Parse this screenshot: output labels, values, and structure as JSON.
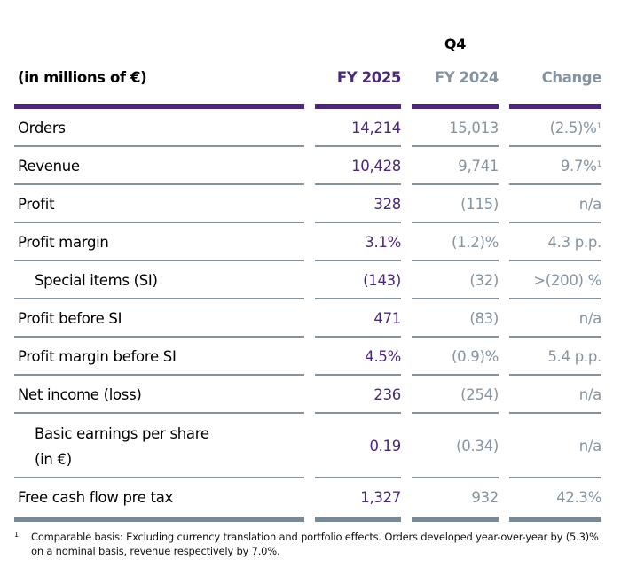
{
  "table": {
    "period_label": "Q4",
    "headers": {
      "label": "(in millions of €)",
      "fy2025": "FY 2025",
      "fy2024": "FY 2024",
      "change": "Change"
    },
    "rows": [
      {
        "label": "Orders",
        "fy2025": "14,214",
        "fy2024": "15,013",
        "change": "(2.5)%",
        "change_note": "1"
      },
      {
        "label": "Revenue",
        "fy2025": "10,428",
        "fy2024": "9,741",
        "change": "9.7%",
        "change_note": "1"
      },
      {
        "label": "Profit",
        "fy2025": "328",
        "fy2024": "(115)",
        "change": "n/a"
      },
      {
        "label": "Profit margin",
        "fy2025": "3.1%",
        "fy2024": "(1.2)%",
        "change": "4.3 p.p."
      },
      {
        "label": "Special items (SI)",
        "fy2025": "(143)",
        "fy2024": "(32)",
        "change": ">(200) %",
        "indent": true
      },
      {
        "label": "Profit before SI",
        "fy2025": "471",
        "fy2024": "(83)",
        "change": "n/a"
      },
      {
        "label": "Profit margin before SI",
        "fy2025": "4.5%",
        "fy2024": "(0.9)%",
        "change": "5.4 p.p."
      },
      {
        "label": "Net income (loss)",
        "fy2025": "236",
        "fy2024": "(254)",
        "change": "n/a"
      },
      {
        "label": "Basic earnings per share",
        "label_line2": "(in €)",
        "fy2025": "0.19",
        "fy2024": "(0.34)",
        "change": "n/a",
        "indent": true
      },
      {
        "label": "Free cash flow pre tax",
        "fy2025": "1,327",
        "fy2024": "932",
        "change": "42.3%"
      }
    ]
  },
  "footnote": {
    "mark": "1",
    "text": "Comparable basis: Excluding currency translation and portfolio effects. Orders developed year-over-year by (5.3)% on a nominal basis, revenue respectively by 7.0%."
  },
  "colors": {
    "accent_purple": "#4b2878",
    "muted_gray": "#8594a0",
    "rule_gray": "#86939c"
  }
}
